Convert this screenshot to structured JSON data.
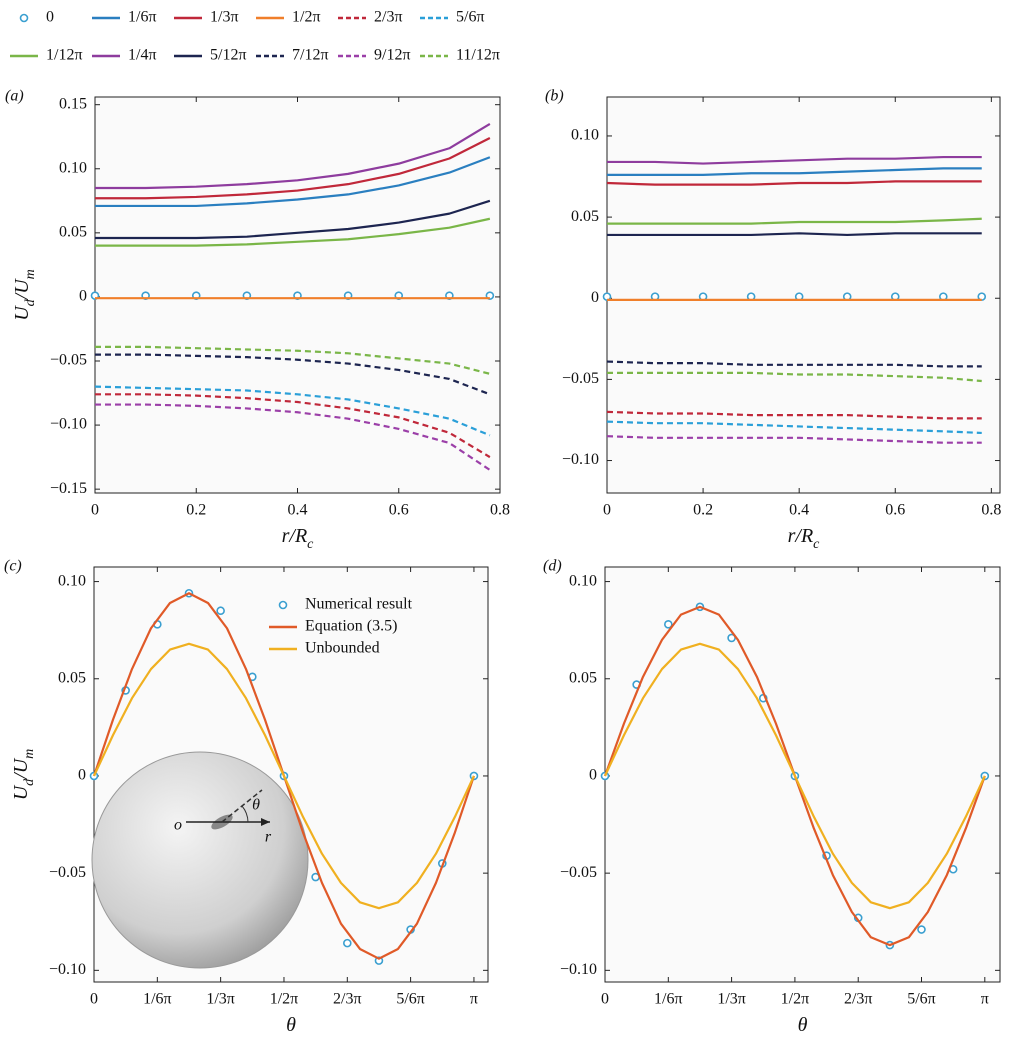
{
  "chart_data": [
    {
      "type": "line",
      "label": "(a)",
      "ylabel": [
        "U",
        "d",
        "/U",
        "m"
      ],
      "xlabel": [
        "r/R",
        "c"
      ],
      "legend": "top",
      "x": [
        0,
        0.1,
        0.2,
        0.3,
        0.4,
        0.5,
        0.6,
        0.7,
        0.78
      ],
      "xlim": [
        0,
        0.8
      ],
      "ylim": [
        -0.153,
        0.156
      ],
      "xticks": [
        0,
        0.2,
        0.4,
        0.6,
        0.8
      ],
      "yticks": [
        {
          "value": -0.15,
          "label": "−0.15"
        },
        {
          "value": -0.1,
          "label": "−0.10"
        },
        {
          "value": -0.05,
          "label": "−0.05"
        },
        0,
        0.05,
        {
          "value": 0.1,
          "label": "0.10"
        },
        0.15
      ],
      "series": [
        {
          "name": "0",
          "color": "#3a9fd0",
          "marker": "circle",
          "values": [
            0.001,
            0.001,
            0.001,
            0.001,
            0.001,
            0.001,
            0.001,
            0.001,
            0.001
          ]
        },
        {
          "name": "1/6π",
          "color": "#2a7fc0",
          "values": [
            0.071,
            0.071,
            0.071,
            0.073,
            0.076,
            0.08,
            0.087,
            0.097,
            0.109
          ]
        },
        {
          "name": "1/3π",
          "color": "#c0283a",
          "values": [
            0.077,
            0.077,
            0.078,
            0.08,
            0.083,
            0.088,
            0.096,
            0.108,
            0.124
          ]
        },
        {
          "name": "1/2π",
          "color": "#f07f2a",
          "values": [
            -0.001,
            -0.001,
            -0.001,
            -0.001,
            -0.001,
            -0.001,
            -0.001,
            -0.001,
            -0.001
          ]
        },
        {
          "name": "2/3π",
          "color": "#c0283a",
          "dash": true,
          "values": [
            -0.076,
            -0.076,
            -0.077,
            -0.079,
            -0.082,
            -0.087,
            -0.094,
            -0.106,
            -0.125
          ]
        },
        {
          "name": "5/6π",
          "color": "#2a9fd8",
          "dash": true,
          "values": [
            -0.07,
            -0.071,
            -0.072,
            -0.073,
            -0.076,
            -0.08,
            -0.087,
            -0.095,
            -0.108
          ]
        },
        {
          "name": "1/12π",
          "color": "#7ab648",
          "values": [
            0.04,
            0.04,
            0.04,
            0.041,
            0.043,
            0.045,
            0.049,
            0.054,
            0.061
          ]
        },
        {
          "name": "1/4π",
          "color": "#8e3c9e",
          "values": [
            0.085,
            0.085,
            0.086,
            0.088,
            0.091,
            0.096,
            0.104,
            0.116,
            0.135
          ]
        },
        {
          "name": "5/12π",
          "color": "#1d2550",
          "values": [
            0.046,
            0.046,
            0.046,
            0.047,
            0.05,
            0.053,
            0.058,
            0.065,
            0.075
          ]
        },
        {
          "name": "7/12π",
          "color": "#1d2550",
          "dash": true,
          "values": [
            -0.045,
            -0.045,
            -0.046,
            -0.047,
            -0.049,
            -0.052,
            -0.057,
            -0.064,
            -0.076
          ]
        },
        {
          "name": "9/12π",
          "color": "#9b3fa8",
          "dash": true,
          "values": [
            -0.084,
            -0.084,
            -0.085,
            -0.087,
            -0.09,
            -0.095,
            -0.103,
            -0.114,
            -0.135
          ]
        },
        {
          "name": "11/12π",
          "color": "#7ab648",
          "dash": true,
          "values": [
            -0.039,
            -0.039,
            -0.04,
            -0.041,
            -0.042,
            -0.044,
            -0.048,
            -0.052,
            -0.06
          ]
        }
      ]
    },
    {
      "type": "line",
      "label": "(b)",
      "xlabel": [
        "r/R",
        "c"
      ],
      "x": [
        0,
        0.1,
        0.2,
        0.3,
        0.4,
        0.5,
        0.6,
        0.7,
        0.78
      ],
      "xlim": [
        0,
        0.818
      ],
      "ylim": [
        -0.12,
        0.124
      ],
      "xticks": [
        0,
        0.2,
        0.4,
        0.6,
        0.8
      ],
      "yticks": [
        {
          "value": -0.1,
          "label": "−0.10"
        },
        {
          "value": -0.05,
          "label": "−0.05"
        },
        0,
        0.05,
        {
          "value": 0.1,
          "label": "0.10"
        }
      ],
      "series": [
        {
          "color": "#3a9fd0",
          "marker": "circle",
          "values": [
            0.001,
            0.001,
            0.001,
            0.001,
            0.001,
            0.001,
            0.001,
            0.001,
            0.001
          ]
        },
        {
          "color": "#2a7fc0",
          "values": [
            0.076,
            0.076,
            0.076,
            0.077,
            0.077,
            0.078,
            0.079,
            0.08,
            0.08
          ]
        },
        {
          "color": "#c0283a",
          "values": [
            0.071,
            0.07,
            0.07,
            0.07,
            0.071,
            0.071,
            0.072,
            0.072,
            0.072
          ]
        },
        {
          "color": "#f07f2a",
          "values": [
            -0.001,
            -0.001,
            -0.001,
            -0.001,
            -0.001,
            -0.001,
            -0.001,
            -0.001,
            -0.001
          ]
        },
        {
          "color": "#c0283a",
          "dash": true,
          "values": [
            -0.07,
            -0.071,
            -0.071,
            -0.072,
            -0.072,
            -0.072,
            -0.073,
            -0.074,
            -0.074
          ]
        },
        {
          "color": "#2a9fd8",
          "dash": true,
          "values": [
            -0.076,
            -0.077,
            -0.077,
            -0.078,
            -0.079,
            -0.08,
            -0.081,
            -0.082,
            -0.083
          ]
        },
        {
          "color": "#7ab648",
          "values": [
            0.046,
            0.046,
            0.046,
            0.046,
            0.047,
            0.047,
            0.047,
            0.048,
            0.049
          ]
        },
        {
          "color": "#8e3c9e",
          "values": [
            0.084,
            0.084,
            0.083,
            0.084,
            0.085,
            0.086,
            0.086,
            0.087,
            0.087
          ]
        },
        {
          "color": "#1d2550",
          "values": [
            0.039,
            0.039,
            0.039,
            0.039,
            0.04,
            0.039,
            0.04,
            0.04,
            0.04
          ]
        },
        {
          "color": "#1d2550",
          "dash": true,
          "values": [
            -0.039,
            -0.04,
            -0.04,
            -0.041,
            -0.041,
            -0.041,
            -0.041,
            -0.042,
            -0.042
          ]
        },
        {
          "color": "#9b3fa8",
          "dash": true,
          "values": [
            -0.085,
            -0.086,
            -0.086,
            -0.086,
            -0.086,
            -0.087,
            -0.088,
            -0.089,
            -0.089
          ]
        },
        {
          "color": "#7ab648",
          "dash": true,
          "values": [
            -0.046,
            -0.046,
            -0.046,
            -0.046,
            -0.047,
            -0.047,
            -0.048,
            -0.049,
            -0.051
          ]
        }
      ]
    },
    {
      "type": "line",
      "label": "(c)",
      "ylabel": [
        "U",
        "d",
        "/U",
        "m"
      ],
      "xlabel": [
        "θ"
      ],
      "legend": "upper right",
      "annotations": [
        "o",
        "r",
        "θ"
      ],
      "xlim": [
        0,
        1.037
      ],
      "ylim": [
        -0.106,
        0.1075
      ],
      "xticks": [
        0,
        {
          "value": 0.1667,
          "label": "1/6π"
        },
        {
          "value": 0.3333,
          "label": "1/3π"
        },
        {
          "value": 0.5,
          "label": "1/2π"
        },
        {
          "value": 0.6667,
          "label": "2/3π"
        },
        {
          "value": 0.8333,
          "label": "5/6π"
        },
        {
          "value": 1,
          "label": "π"
        }
      ],
      "yticks": [
        {
          "value": -0.1,
          "label": "−0.10"
        },
        {
          "value": -0.05,
          "label": "−0.05"
        },
        0,
        0.05,
        {
          "value": 0.1,
          "label": "0.10"
        }
      ],
      "series": [
        {
          "name": "Numerical result",
          "color": "#3a9fd0",
          "marker": "circle",
          "x": [
            0,
            0.0833,
            0.1667,
            0.25,
            0.3333,
            0.4167,
            0.5,
            0.5833,
            0.6667,
            0.75,
            0.8333,
            0.9167,
            1
          ],
          "values": [
            0,
            0.044,
            0.078,
            0.094,
            0.085,
            0.051,
            0,
            -0.052,
            -0.086,
            -0.095,
            -0.079,
            -0.045,
            0
          ]
        },
        {
          "name": "Equation (3.5)",
          "color": "#e05a28",
          "x": [
            0,
            0.05,
            0.1,
            0.15,
            0.2,
            0.25,
            0.3,
            0.35,
            0.4,
            0.45,
            0.5,
            0.55,
            0.6,
            0.65,
            0.7,
            0.75,
            0.8,
            0.85,
            0.9,
            0.95,
            1
          ],
          "values": [
            0,
            0.029,
            0.055,
            0.076,
            0.089,
            0.094,
            0.089,
            0.076,
            0.055,
            0.029,
            0,
            -0.029,
            -0.055,
            -0.076,
            -0.089,
            -0.094,
            -0.089,
            -0.076,
            -0.055,
            -0.029,
            0
          ]
        },
        {
          "name": "Unbounded",
          "color": "#f0b020",
          "x": [
            0,
            0.05,
            0.1,
            0.15,
            0.2,
            0.25,
            0.3,
            0.35,
            0.4,
            0.45,
            0.5,
            0.55,
            0.6,
            0.65,
            0.7,
            0.75,
            0.8,
            0.85,
            0.9,
            0.95,
            1
          ],
          "values": [
            0,
            0.021,
            0.04,
            0.055,
            0.065,
            0.068,
            0.065,
            0.055,
            0.04,
            0.021,
            0,
            -0.021,
            -0.04,
            -0.055,
            -0.065,
            -0.068,
            -0.065,
            -0.055,
            -0.04,
            -0.021,
            0
          ]
        }
      ]
    },
    {
      "type": "line",
      "label": "(d)",
      "xlabel": [
        "θ"
      ],
      "xlim": [
        0,
        1.04
      ],
      "ylim": [
        -0.106,
        0.1075
      ],
      "xticks": [
        0,
        {
          "value": 0.1667,
          "label": "1/6π"
        },
        {
          "value": 0.3333,
          "label": "1/3π"
        },
        {
          "value": 0.5,
          "label": "1/2π"
        },
        {
          "value": 0.6667,
          "label": "2/3π"
        },
        {
          "value": 0.8333,
          "label": "5/6π"
        },
        {
          "value": 1,
          "label": "π"
        }
      ],
      "yticks": [
        {
          "value": -0.1,
          "label": "−0.10"
        },
        {
          "value": -0.05,
          "label": "−0.05"
        },
        0,
        0.05,
        {
          "value": 0.1,
          "label": "0.10"
        }
      ],
      "series": [
        {
          "color": "#3a9fd0",
          "marker": "circle",
          "x": [
            0,
            0.0833,
            0.1667,
            0.25,
            0.3333,
            0.4167,
            0.5,
            0.5833,
            0.6667,
            0.75,
            0.8333,
            0.9167,
            1
          ],
          "values": [
            0,
            0.047,
            0.078,
            0.087,
            0.071,
            0.04,
            0,
            -0.041,
            -0.073,
            -0.087,
            -0.079,
            -0.048,
            0
          ]
        },
        {
          "color": "#e05a28",
          "x": [
            0,
            0.05,
            0.1,
            0.15,
            0.2,
            0.25,
            0.3,
            0.35,
            0.4,
            0.45,
            0.5,
            0.55,
            0.6,
            0.65,
            0.7,
            0.75,
            0.8,
            0.85,
            0.9,
            0.95,
            1
          ],
          "values": [
            0,
            0.027,
            0.051,
            0.07,
            0.083,
            0.087,
            0.083,
            0.07,
            0.051,
            0.027,
            0,
            -0.027,
            -0.051,
            -0.07,
            -0.083,
            -0.087,
            -0.083,
            -0.07,
            -0.051,
            -0.027,
            0
          ]
        },
        {
          "color": "#f0b020",
          "x": [
            0,
            0.05,
            0.1,
            0.15,
            0.2,
            0.25,
            0.3,
            0.35,
            0.4,
            0.45,
            0.5,
            0.55,
            0.6,
            0.65,
            0.7,
            0.75,
            0.8,
            0.85,
            0.9,
            0.95,
            1
          ],
          "values": [
            0,
            0.021,
            0.04,
            0.055,
            0.065,
            0.068,
            0.065,
            0.055,
            0.04,
            0.021,
            0,
            -0.021,
            -0.04,
            -0.055,
            -0.065,
            -0.068,
            -0.065,
            -0.055,
            -0.04,
            -0.021,
            0
          ]
        }
      ]
    }
  ]
}
